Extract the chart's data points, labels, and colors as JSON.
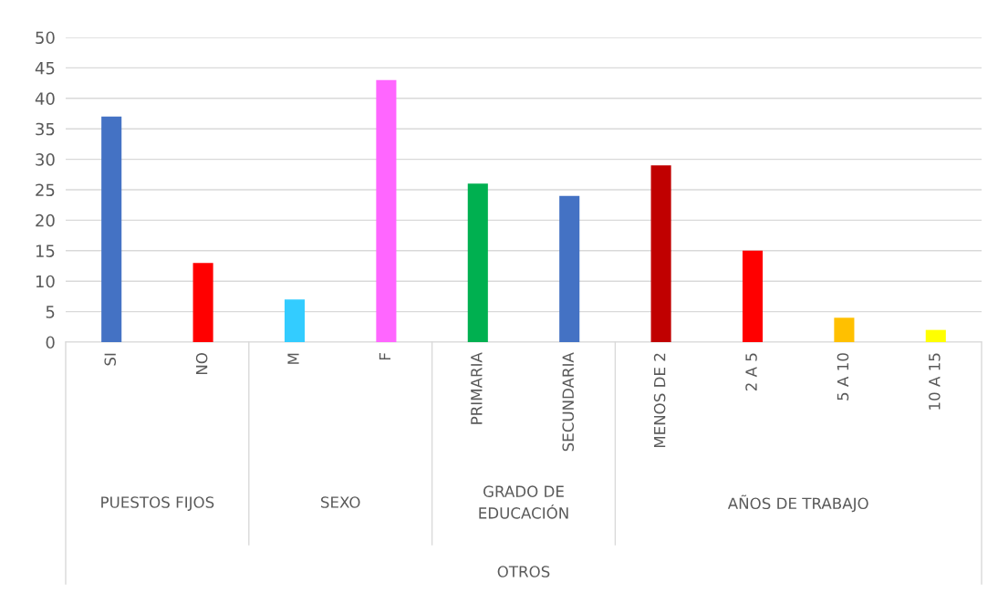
{
  "chart_data": {
    "type": "bar",
    "categories": [
      "SI",
      "NO",
      "M",
      "F",
      "PRIMARIA",
      "SECUNDARIA",
      "MENOS DE 2",
      "2 A 5",
      "5 A 10",
      "10 A 15"
    ],
    "values": [
      37,
      13,
      7,
      43,
      26,
      24,
      29,
      15,
      4,
      2
    ],
    "colors": [
      "#4472c4",
      "#ff0000",
      "#33ccff",
      "#ff66ff",
      "#00b050",
      "#4472c4",
      "#c00000",
      "#ff0000",
      "#ffc000",
      "#ffff00"
    ],
    "ylim": [
      0,
      50
    ],
    "yticks": [
      0,
      5,
      10,
      15,
      20,
      25,
      30,
      35,
      40,
      45,
      50
    ],
    "grid": "y",
    "annotations": [
      "PUESTOS FIJOS",
      "SEXO",
      "GRADO DE\nEDUCACIÓN",
      "AÑOS DE TRABAJO",
      "OTROS"
    ]
  }
}
